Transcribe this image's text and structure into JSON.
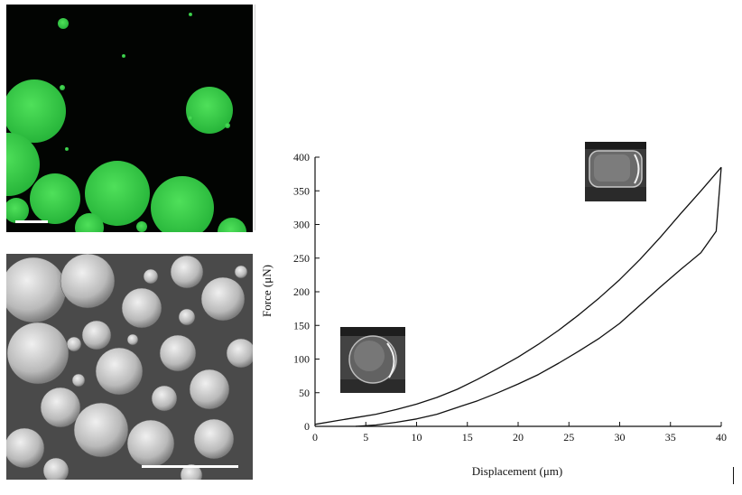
{
  "images": {
    "top_left": {
      "icon": "confocal-fluorescence-micrograph",
      "colors": {
        "background": "#020402",
        "spheres": "#3fd44f"
      }
    },
    "bottom_left": {
      "icon": "sem-micrograph-microspheres",
      "colors": {
        "background": "#4a4a4a",
        "spheres": "#d6d6d6"
      }
    },
    "inset_compressed": {
      "icon": "sem-inset-compressed-sphere"
    },
    "inset_initial": {
      "icon": "sem-inset-initial-sphere"
    }
  },
  "chart_data": {
    "type": "line",
    "title": "",
    "xlabel": "Displacement (μm)",
    "ylabel": "Force (μN)",
    "xlim": [
      0,
      40
    ],
    "ylim": [
      0,
      400
    ],
    "xticks": [
      0,
      5,
      10,
      15,
      20,
      25,
      30,
      35,
      40
    ],
    "yticks": [
      0,
      50,
      100,
      150,
      200,
      250,
      300,
      350,
      400
    ],
    "grid": false,
    "legend": "none",
    "color": "#111111",
    "series": [
      {
        "x": [
          0,
          2,
          4,
          6,
          8,
          10,
          12,
          14,
          16,
          18,
          20,
          22,
          24,
          26,
          28,
          30,
          32,
          34,
          36,
          38,
          40
        ],
        "y": [
          3,
          8,
          13,
          18,
          25,
          33,
          43,
          55,
          70,
          86,
          103,
          122,
          143,
          166,
          191,
          218,
          248,
          281,
          316,
          350,
          385
        ]
      },
      {
        "x": [
          40,
          39.5,
          38,
          36,
          34,
          32,
          30,
          28,
          26,
          24,
          22,
          20,
          18,
          16,
          14,
          12,
          10,
          8,
          6,
          5,
          4
        ],
        "y": [
          385,
          290,
          258,
          233,
          207,
          180,
          153,
          131,
          112,
          94,
          77,
          63,
          50,
          38,
          28,
          18,
          11,
          6,
          2,
          1,
          0
        ]
      }
    ]
  }
}
